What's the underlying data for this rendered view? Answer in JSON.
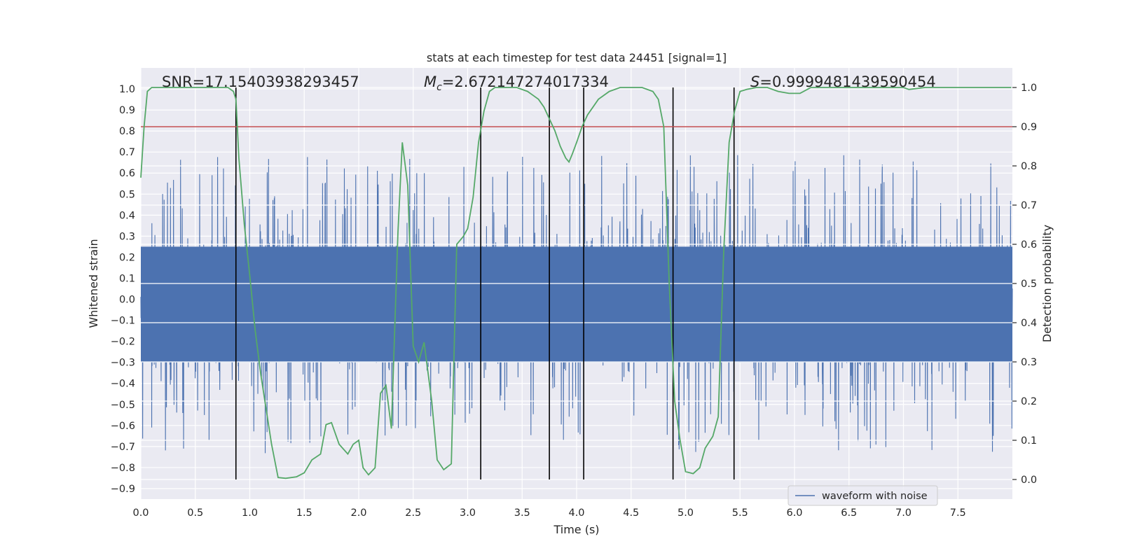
{
  "chart_data": {
    "type": "line",
    "title": "stats at each timestep for test data 24451 [signal=1]",
    "xlabel": "Time (s)",
    "ylabel": "Whitened strain",
    "y2label": "Detection probability",
    "xlim": [
      0.0,
      8.0
    ],
    "ylim": [
      -0.95,
      1.1
    ],
    "y2lim": [
      -0.05,
      1.05
    ],
    "xticks": [
      0.0,
      0.5,
      1.0,
      1.5,
      2.0,
      2.5,
      3.0,
      3.5,
      4.0,
      4.5,
      5.0,
      5.5,
      6.0,
      6.5,
      7.0,
      7.5
    ],
    "xtick_labels": [
      "0.0",
      "0.5",
      "1.0",
      "1.5",
      "2.0",
      "2.5",
      "3.0",
      "3.5",
      "4.0",
      "4.5",
      "5.0",
      "5.5",
      "6.0",
      "6.5",
      "7.0",
      "7.5"
    ],
    "yticks": [
      1.0,
      0.9,
      0.8,
      0.7,
      0.6,
      0.5,
      0.4,
      0.3,
      0.2,
      0.1,
      0.0,
      -0.1,
      -0.2,
      -0.3,
      -0.4,
      -0.5,
      -0.6,
      -0.7,
      -0.8,
      -0.9
    ],
    "ytick_labels": [
      "1.0",
      "0.9",
      "0.8",
      "0.7",
      "0.6",
      "0.5",
      "0.4",
      "0.3",
      "0.2",
      "0.1",
      "0.0",
      "−0.1",
      "−0.2",
      "−0.3",
      "−0.4",
      "−0.5",
      "−0.6",
      "−0.7",
      "−0.8",
      "−0.9"
    ],
    "y2ticks": [
      1.0,
      0.9,
      0.8,
      0.7,
      0.6,
      0.5,
      0.4,
      0.3,
      0.2,
      0.1,
      0.0
    ],
    "y2tick_labels": [
      "1.0",
      "0.9",
      "0.8",
      "0.7",
      "0.6",
      "0.5",
      "0.4",
      "0.3",
      "0.2",
      "0.1",
      "0.0"
    ],
    "grid": true,
    "legend": {
      "entries": [
        "waveform with noise"
      ],
      "placement": "lower-right"
    },
    "annotations": {
      "snr": "SNR=17.15403938293457",
      "mc_prefix": "M",
      "mc_sub": "c",
      "mc_value": "=2.672147274017334",
      "s_prefix": "S",
      "s_value": "=0.9999481439590454"
    },
    "threshold": {
      "value": 0.9,
      "axis": "y2",
      "color": "#c44e52"
    },
    "vertical_markers": [
      0.873,
      3.12,
      3.75,
      4.065,
      4.885,
      5.445
    ],
    "waveform": {
      "name": "waveform with noise",
      "duration": 8.0,
      "noise_band": [
        -0.3,
        0.25
      ],
      "color": "#4c72b0",
      "seed": 24451
    },
    "series": [
      {
        "name": "Detection probability",
        "axis": "y2",
        "color": "#55a868",
        "x": [
          0.0,
          0.03,
          0.06,
          0.1,
          0.2,
          0.4,
          0.6,
          0.8,
          0.85,
          0.873,
          0.9,
          0.95,
          1.0,
          1.05,
          1.1,
          1.15,
          1.2,
          1.26,
          1.33,
          1.43,
          1.5,
          1.57,
          1.65,
          1.7,
          1.75,
          1.82,
          1.9,
          1.95,
          2.0,
          2.04,
          2.09,
          2.15,
          2.2,
          2.25,
          2.3,
          2.36,
          2.4,
          2.45,
          2.5,
          2.55,
          2.6,
          2.67,
          2.72,
          2.78,
          2.85,
          2.9,
          2.96,
          3.0,
          3.05,
          3.1,
          3.15,
          3.2,
          3.25,
          3.3,
          3.35,
          3.45,
          3.55,
          3.6,
          3.65,
          3.7,
          3.75,
          3.8,
          3.85,
          3.9,
          3.93,
          3.96,
          4.0,
          4.05,
          4.1,
          4.2,
          4.3,
          4.4,
          4.5,
          4.6,
          4.7,
          4.75,
          4.8,
          4.85,
          4.9,
          4.95,
          5.0,
          5.07,
          5.13,
          5.18,
          5.25,
          5.3,
          5.35,
          5.4,
          5.45,
          5.5,
          5.56,
          5.65,
          5.75,
          5.85,
          5.95,
          6.05,
          6.15,
          6.25,
          6.4,
          6.6,
          6.8,
          7.0,
          7.05,
          7.2,
          7.4,
          7.6,
          7.8,
          7.99
        ],
        "values": [
          0.77,
          0.9,
          0.99,
          1.0,
          1.0,
          1.0,
          1.0,
          1.0,
          0.99,
          0.97,
          0.82,
          0.65,
          0.52,
          0.38,
          0.27,
          0.18,
          0.09,
          0.005,
          0.003,
          0.007,
          0.017,
          0.05,
          0.065,
          0.14,
          0.145,
          0.09,
          0.065,
          0.09,
          0.1,
          0.03,
          0.012,
          0.03,
          0.22,
          0.24,
          0.13,
          0.63,
          0.86,
          0.75,
          0.34,
          0.3,
          0.35,
          0.2,
          0.05,
          0.025,
          0.04,
          0.6,
          0.62,
          0.64,
          0.72,
          0.86,
          0.94,
          0.99,
          1.0,
          1.0,
          1.0,
          1.0,
          0.99,
          0.98,
          0.97,
          0.95,
          0.92,
          0.89,
          0.85,
          0.82,
          0.81,
          0.83,
          0.86,
          0.9,
          0.93,
          0.97,
          0.99,
          1.0,
          1.0,
          1.0,
          0.99,
          0.97,
          0.9,
          0.5,
          0.2,
          0.1,
          0.02,
          0.015,
          0.03,
          0.08,
          0.11,
          0.16,
          0.58,
          0.86,
          0.94,
          0.99,
          0.995,
          1.0,
          1.0,
          0.99,
          0.985,
          0.985,
          1.0,
          1.0,
          1.0,
          1.0,
          1.0,
          1.0,
          0.995,
          1.0,
          1.0,
          1.0,
          1.0,
          1.0
        ]
      }
    ]
  }
}
